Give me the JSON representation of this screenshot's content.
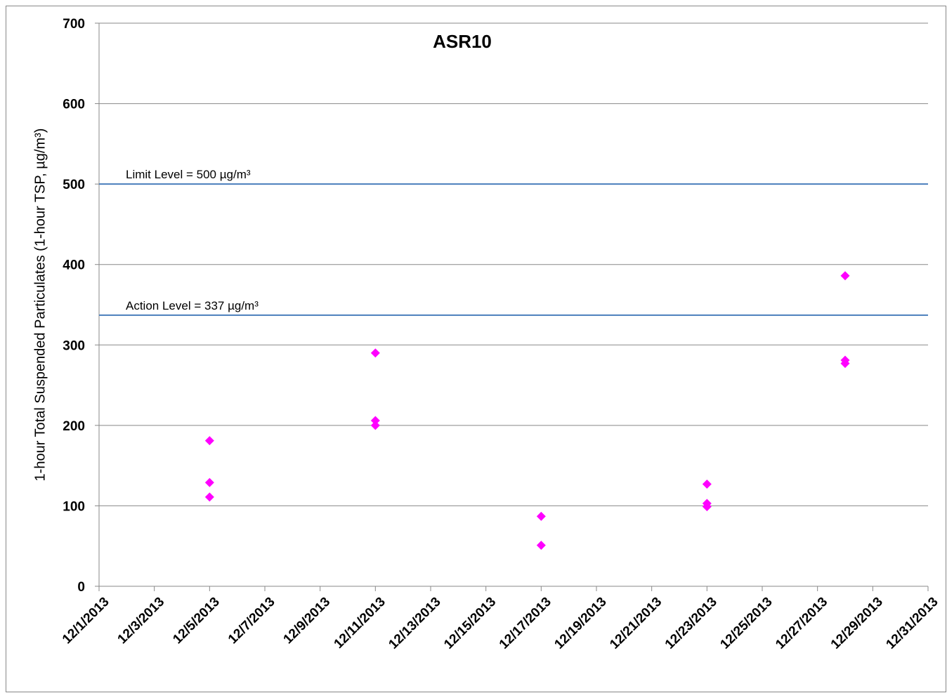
{
  "chart_data": {
    "type": "scatter",
    "title": "ASR10",
    "y_label": "1-hour Total Suspended Particulates (1-hour TSP, µg/m³)",
    "series": [
      {
        "name": "ASR10",
        "color": "#ff00ff",
        "x": [
          5,
          5,
          5,
          11,
          11,
          11,
          17,
          17,
          23,
          23,
          23,
          28,
          28,
          28
        ],
        "values": [
          181,
          129,
          111,
          290,
          206,
          200,
          87,
          51,
          127,
          103,
          99,
          386,
          281,
          277
        ]
      }
    ],
    "thresholds": [
      {
        "label": "Limit Level = 500 µg/m³",
        "value": 500,
        "color": "#4a7ebb"
      },
      {
        "label": "Action Level = 337 µg/m³",
        "value": 337,
        "color": "#4a7ebb"
      }
    ],
    "xlim": [
      1,
      31
    ],
    "xticks": [
      {
        "value": 1,
        "label": "12/1/2013"
      },
      {
        "value": 3,
        "label": "12/3/2013"
      },
      {
        "value": 5,
        "label": "12/5/2013"
      },
      {
        "value": 7,
        "label": "12/7/2013"
      },
      {
        "value": 9,
        "label": "12/9/2013"
      },
      {
        "value": 11,
        "label": "12/11/2013"
      },
      {
        "value": 13,
        "label": "12/13/2013"
      },
      {
        "value": 15,
        "label": "12/15/2013"
      },
      {
        "value": 17,
        "label": "12/17/2013"
      },
      {
        "value": 19,
        "label": "12/19/2013"
      },
      {
        "value": 21,
        "label": "12/21/2013"
      },
      {
        "value": 23,
        "label": "12/23/2013"
      },
      {
        "value": 25,
        "label": "12/25/2013"
      },
      {
        "value": 27,
        "label": "12/27/2013"
      },
      {
        "value": 29,
        "label": "12/29/2013"
      },
      {
        "value": 31,
        "label": "12/31/2013"
      }
    ],
    "ylim": [
      0,
      700
    ],
    "yticks": [
      0,
      100,
      200,
      300,
      400,
      500,
      600,
      700
    ],
    "grid": true
  }
}
